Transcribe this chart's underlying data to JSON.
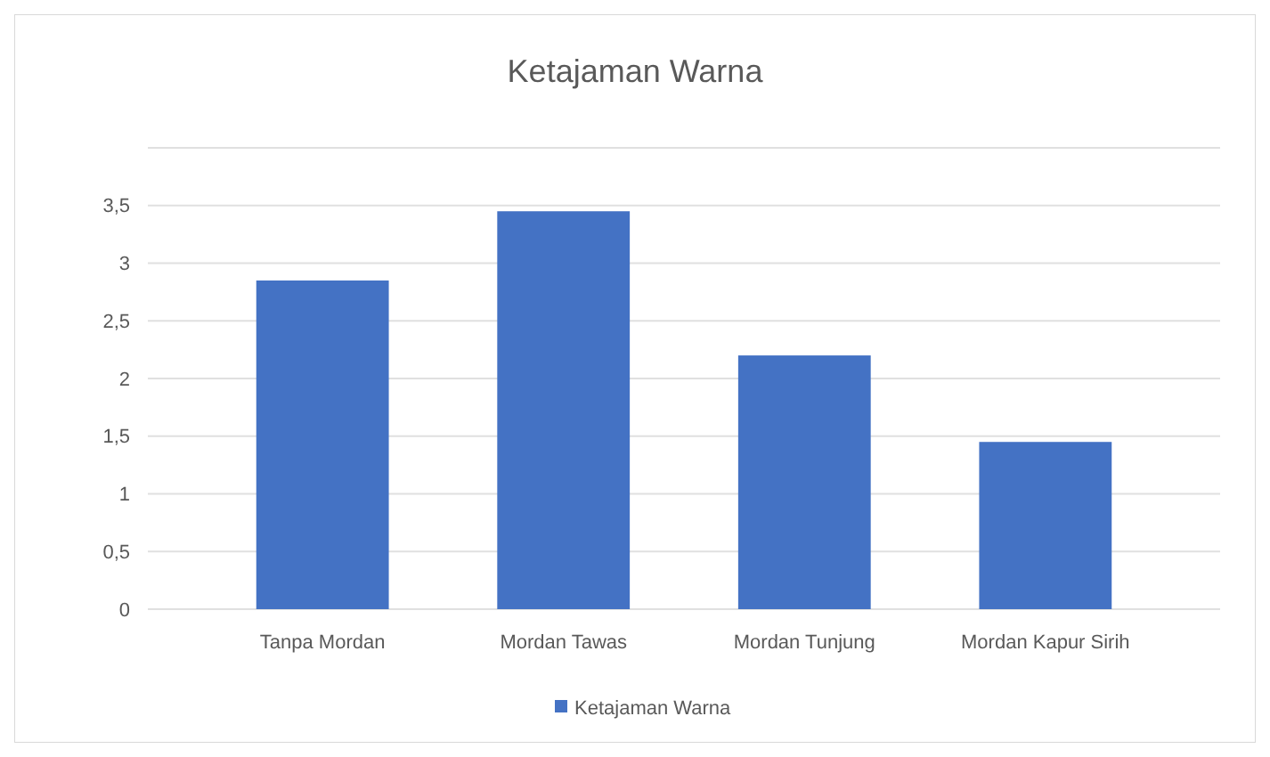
{
  "chart_data": {
    "type": "bar",
    "title": "Ketajaman Warna",
    "categories": [
      "Tanpa Mordan",
      "Mordan Tawas",
      "Mordan Tunjung",
      "Mordan Kapur Sirih"
    ],
    "series": [
      {
        "name": "Ketajaman Warna",
        "color": "#4472c4",
        "values": [
          2.85,
          3.45,
          2.2,
          1.45
        ]
      }
    ],
    "ylim": [
      0,
      4
    ],
    "yticks": [
      0,
      {
        "value": 0.5,
        "label": "0,5"
      },
      1,
      {
        "value": 1.5,
        "label": "1,5"
      },
      2,
      {
        "value": 2.5,
        "label": "2,5"
      },
      3,
      {
        "value": 3.5,
        "label": "3,5"
      },
      {
        "value": 4,
        "label": null
      }
    ],
    "grid": true,
    "legend": "bottom"
  }
}
